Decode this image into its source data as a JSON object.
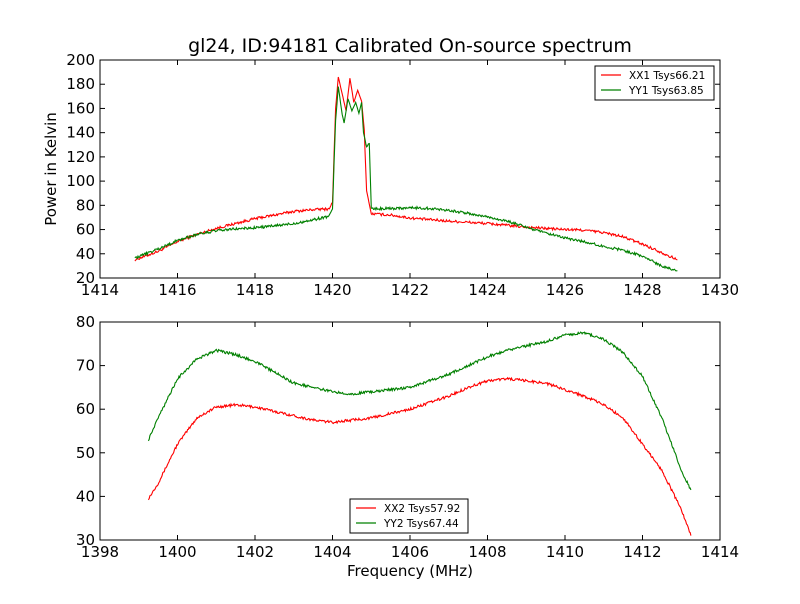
{
  "chart_data": [
    {
      "type": "line",
      "title": "gl24, ID:94181 Calibrated On-source spectrum",
      "xlabel": "",
      "ylabel": "Power in Kelvin",
      "xlim": [
        1414,
        1430
      ],
      "ylim": [
        20,
        200
      ],
      "xticks": [
        1414,
        1416,
        1418,
        1420,
        1422,
        1424,
        1426,
        1428,
        1430
      ],
      "yticks": [
        20,
        40,
        60,
        80,
        100,
        120,
        140,
        160,
        180,
        200
      ],
      "legend": "top-right",
      "series": [
        {
          "name": "XX1 Tsys66.21",
          "color": "#ff0000",
          "points": [
            [
              1414.9,
              35
            ],
            [
              1415.5,
              42
            ],
            [
              1416,
              50
            ],
            [
              1416.5,
              56
            ],
            [
              1417,
              61
            ],
            [
              1417.5,
              65
            ],
            [
              1418,
              69
            ],
            [
              1418.5,
              72
            ],
            [
              1419,
              75
            ],
            [
              1419.5,
              76.5
            ],
            [
              1419.9,
              77
            ],
            [
              1420.0,
              82
            ],
            [
              1420.08,
              160
            ],
            [
              1420.15,
              186
            ],
            [
              1420.25,
              172
            ],
            [
              1420.35,
              158
            ],
            [
              1420.45,
              185
            ],
            [
              1420.55,
              165
            ],
            [
              1420.65,
              175
            ],
            [
              1420.75,
              166
            ],
            [
              1420.82,
              142
            ],
            [
              1420.88,
              92
            ],
            [
              1421.0,
              73
            ],
            [
              1421.5,
              72
            ],
            [
              1422,
              69.5
            ],
            [
              1423,
              67
            ],
            [
              1424,
              65
            ],
            [
              1425,
              62
            ],
            [
              1426,
              60
            ],
            [
              1426.5,
              59.5
            ],
            [
              1427,
              57.5
            ],
            [
              1427.5,
              54
            ],
            [
              1428,
              48
            ],
            [
              1428.5,
              41
            ],
            [
              1428.9,
              35
            ]
          ]
        },
        {
          "name": "YY1 Tsys63.85",
          "color": "#008000",
          "points": [
            [
              1414.9,
              36.5
            ],
            [
              1415.5,
              44
            ],
            [
              1416,
              51
            ],
            [
              1416.5,
              56
            ],
            [
              1417,
              59
            ],
            [
              1417.5,
              60.5
            ],
            [
              1418,
              61.5
            ],
            [
              1418.5,
              63
            ],
            [
              1419,
              65
            ],
            [
              1419.5,
              68
            ],
            [
              1419.9,
              71
            ],
            [
              1420.0,
              77
            ],
            [
              1420.08,
              150
            ],
            [
              1420.15,
              178
            ],
            [
              1420.25,
              155
            ],
            [
              1420.3,
              148
            ],
            [
              1420.4,
              168
            ],
            [
              1420.5,
              158
            ],
            [
              1420.6,
              165
            ],
            [
              1420.68,
              156
            ],
            [
              1420.75,
              165
            ],
            [
              1420.8,
              140
            ],
            [
              1420.88,
              128
            ],
            [
              1420.95,
              131
            ],
            [
              1421.0,
              77
            ],
            [
              1421.5,
              77.5
            ],
            [
              1422,
              78
            ],
            [
              1422.5,
              77.5
            ],
            [
              1423,
              76
            ],
            [
              1424,
              70.5
            ],
            [
              1424.5,
              67
            ],
            [
              1425,
              62
            ],
            [
              1425.5,
              57
            ],
            [
              1426,
              53
            ],
            [
              1426.5,
              50
            ],
            [
              1427,
              46
            ],
            [
              1427.5,
              43
            ],
            [
              1428,
              38
            ],
            [
              1428.5,
              30
            ],
            [
              1428.9,
              26
            ]
          ]
        }
      ]
    },
    {
      "type": "line",
      "title": "",
      "xlabel": "Frequency (MHz)",
      "ylabel": "",
      "xlim": [
        1398,
        1414
      ],
      "ylim": [
        30,
        80
      ],
      "xticks": [
        1398,
        1400,
        1402,
        1404,
        1406,
        1408,
        1410,
        1412,
        1414
      ],
      "yticks": [
        30,
        40,
        50,
        60,
        70,
        80
      ],
      "legend": "bottom-center",
      "series": [
        {
          "name": "XX2 Tsys57.92",
          "color": "#ff0000",
          "points": [
            [
              1399.25,
              39.5
            ],
            [
              1399.5,
              43
            ],
            [
              1400,
              52
            ],
            [
              1400.5,
              58
            ],
            [
              1401,
              60.5
            ],
            [
              1401.5,
              61
            ],
            [
              1402,
              60.5
            ],
            [
              1402.5,
              59.5
            ],
            [
              1403,
              58.5
            ],
            [
              1403.5,
              57.5
            ],
            [
              1404,
              57
            ],
            [
              1404.5,
              57.5
            ],
            [
              1405,
              58
            ],
            [
              1405.5,
              59
            ],
            [
              1406,
              60
            ],
            [
              1406.5,
              61.5
            ],
            [
              1407,
              63
            ],
            [
              1407.5,
              65
            ],
            [
              1408,
              66.5
            ],
            [
              1408.5,
              67
            ],
            [
              1409,
              66.5
            ],
            [
              1409.5,
              66
            ],
            [
              1410,
              64.5
            ],
            [
              1410.5,
              63
            ],
            [
              1411,
              61
            ],
            [
              1411.5,
              58
            ],
            [
              1412,
              52
            ],
            [
              1412.5,
              46
            ],
            [
              1413,
              37
            ],
            [
              1413.25,
              31
            ]
          ]
        },
        {
          "name": "YY2 Tsys67.44",
          "color": "#008000",
          "points": [
            [
              1399.25,
              53
            ],
            [
              1399.5,
              58
            ],
            [
              1400,
              67
            ],
            [
              1400.5,
              71.5
            ],
            [
              1401,
              73.5
            ],
            [
              1401.5,
              72.5
            ],
            [
              1402,
              71
            ],
            [
              1402.5,
              68.5
            ],
            [
              1403,
              66
            ],
            [
              1403.5,
              65
            ],
            [
              1404,
              64
            ],
            [
              1404.5,
              63.5
            ],
            [
              1405,
              64
            ],
            [
              1405.5,
              64.5
            ],
            [
              1406,
              65
            ],
            [
              1406.5,
              66.5
            ],
            [
              1407,
              68
            ],
            [
              1407.5,
              70
            ],
            [
              1408,
              72
            ],
            [
              1408.5,
              73.5
            ],
            [
              1409,
              74.5
            ],
            [
              1409.5,
              75.5
            ],
            [
              1410,
              77
            ],
            [
              1410.5,
              77.5
            ],
            [
              1411,
              76
            ],
            [
              1411.5,
              73
            ],
            [
              1412,
              67.5
            ],
            [
              1412.5,
              58
            ],
            [
              1413,
              46
            ],
            [
              1413.25,
              41.5
            ]
          ]
        }
      ]
    }
  ]
}
